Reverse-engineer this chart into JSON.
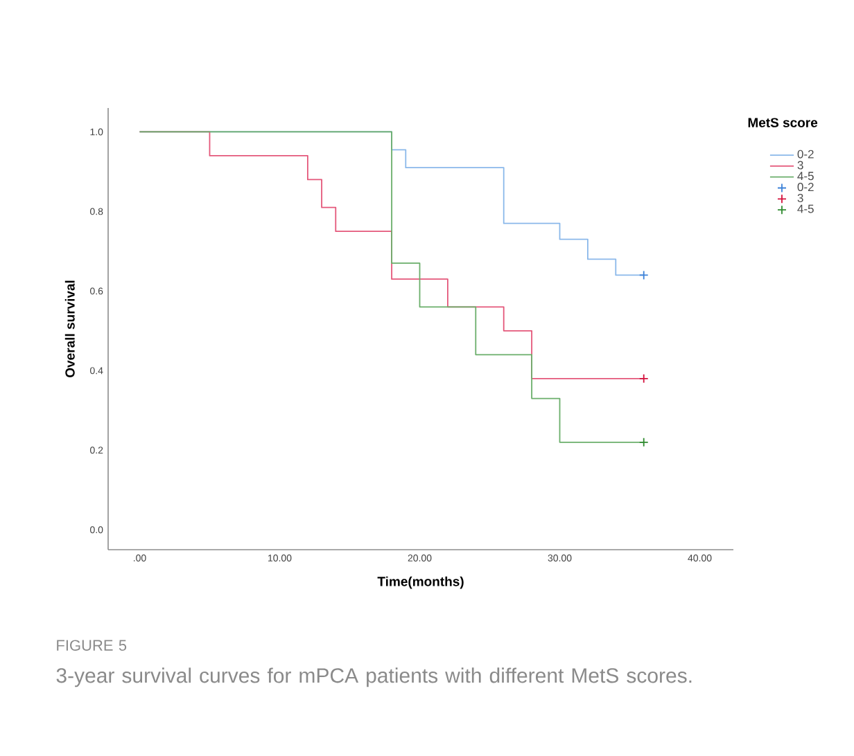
{
  "chart_data": {
    "type": "step",
    "xlabel": "Time(months)",
    "ylabel": "Overall survival",
    "legend_title": "MetS score",
    "legend": "top right",
    "grid": false,
    "annotations": [
      "FIGURE 5",
      "3-year survival curves for mPCA patients with different MetS scores."
    ],
    "xlim": [
      -2.25,
      42.4
    ],
    "ylim": [
      -0.05,
      1.06
    ],
    "xticks": [
      {
        "value": 0,
        "label": ".00"
      },
      {
        "value": 10,
        "label": "10.00"
      },
      {
        "value": 20,
        "label": "20.00"
      },
      {
        "value": 30,
        "label": "30.00"
      },
      {
        "value": 40,
        "label": "40.00"
      }
    ],
    "yticks": [
      {
        "value": 0,
        "label": "0.0"
      },
      {
        "value": 0.2,
        "label": "0.2"
      },
      {
        "value": 0.4,
        "label": "0.4"
      },
      {
        "value": 0.6,
        "label": "0.6"
      },
      {
        "value": 0.8,
        "label": "0.8"
      },
      {
        "value": 1,
        "label": "1.0"
      }
    ],
    "series": [
      {
        "name": "0-2",
        "color": "#8ab8ea",
        "x": [
          0,
          18,
          19,
          26,
          30,
          32,
          34,
          36
        ],
        "values": [
          1,
          0.955,
          0.91,
          0.77,
          0.73,
          0.68,
          0.64,
          0.64
        ]
      },
      {
        "name": "3",
        "color": "#e4577a",
        "x": [
          0,
          5,
          12,
          13,
          14,
          18,
          22,
          26,
          28,
          36
        ],
        "values": [
          1,
          0.94,
          0.88,
          0.81,
          0.75,
          0.63,
          0.56,
          0.5,
          0.38,
          0.38
        ]
      },
      {
        "name": "4-5",
        "color": "#6aae6a",
        "x": [
          0,
          18,
          20,
          24,
          28,
          30,
          36
        ],
        "values": [
          1,
          0.67,
          0.56,
          0.44,
          0.33,
          0.22,
          0.22
        ]
      },
      {
        "name": "0-2",
        "type": "scatter",
        "marker": "cross",
        "color": "#3d82d8",
        "x": [
          36
        ],
        "values": [
          0.64
        ]
      },
      {
        "name": "3",
        "type": "scatter",
        "marker": "cross",
        "color": "#d4103c",
        "x": [
          36
        ],
        "values": [
          0.38
        ]
      },
      {
        "name": "4-5",
        "type": "scatter",
        "marker": "cross",
        "color": "#2f8a2f",
        "x": [
          36
        ],
        "values": [
          0.22
        ]
      }
    ]
  }
}
